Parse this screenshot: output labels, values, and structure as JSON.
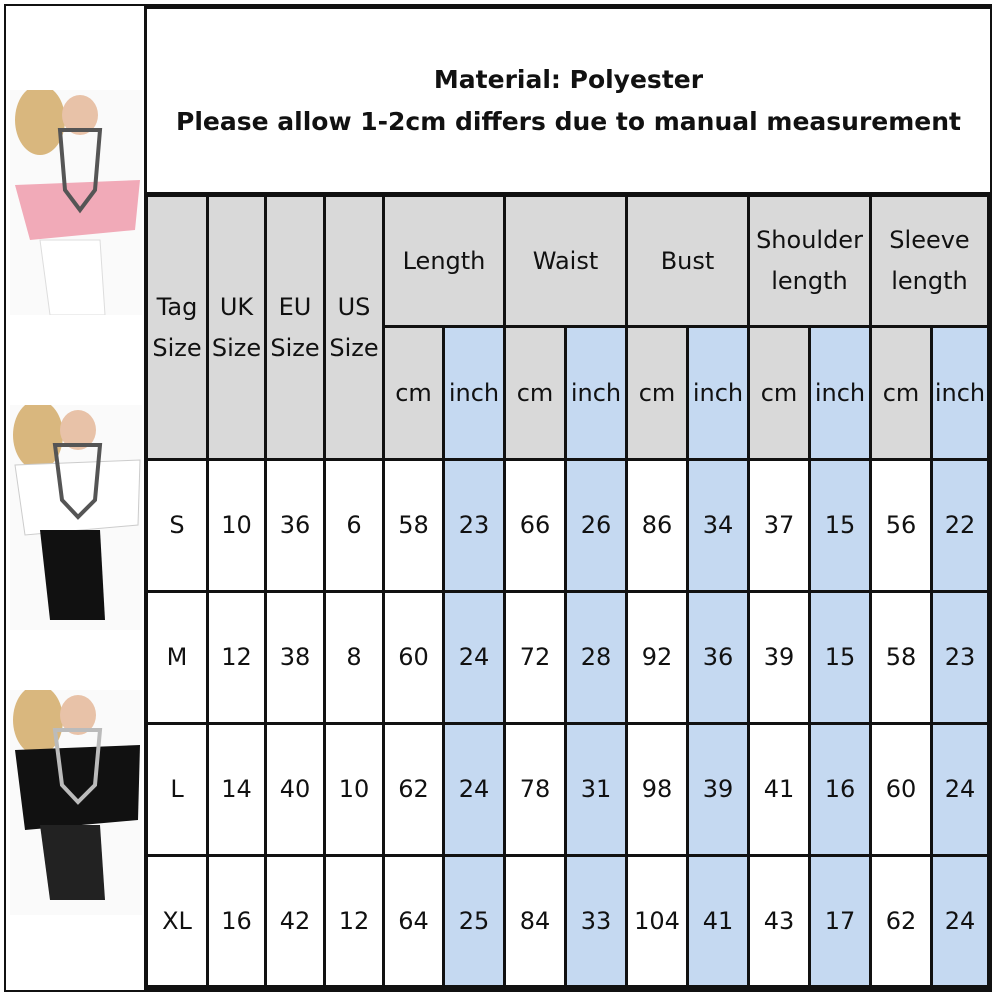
{
  "header": {
    "lines": [
      "Material: Polyester",
      "Please allow 1-2cm differs due to manual measurement"
    ]
  },
  "table": {
    "size_headers": [
      "Tag Size",
      "UK Size",
      "EU Size",
      "US Size"
    ],
    "measure_headers": [
      "Length",
      "Waist",
      "Bust",
      "Shoulder length",
      "Sleeve length"
    ],
    "unit_headers": [
      "cm",
      "inch",
      "cm",
      "inch",
      "cm",
      "inch",
      "cm",
      "inch",
      "cm",
      "inch"
    ],
    "rows": [
      [
        "S",
        10,
        36,
        6,
        58,
        23,
        66,
        26,
        86,
        34,
        37,
        15,
        56,
        22
      ],
      [
        "M",
        12,
        38,
        8,
        60,
        24,
        72,
        28,
        92,
        36,
        39,
        15,
        58,
        23
      ],
      [
        "L",
        14,
        40,
        10,
        62,
        24,
        78,
        31,
        98,
        39,
        41,
        16,
        60,
        24
      ],
      [
        "XL",
        16,
        42,
        12,
        64,
        25,
        84,
        33,
        104,
        41,
        43,
        17,
        62,
        24
      ]
    ]
  }
}
